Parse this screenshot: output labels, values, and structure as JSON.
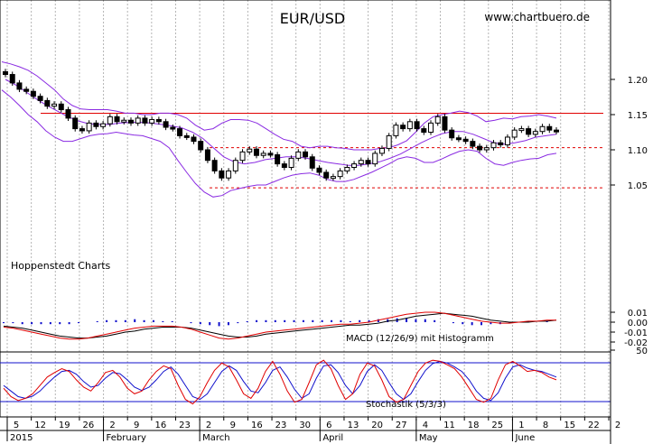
{
  "chart_data": {
    "type": "candlestick",
    "title": "EUR/USD",
    "source": "www.chartbuero.de",
    "watermark": "Hoppenstedt Charts",
    "price_axis": {
      "ylim": [
        1.03,
        1.22
      ],
      "ticks": [
        "1.20",
        "1.15",
        "1.10",
        "1.05"
      ],
      "tick_values": [
        1.2,
        1.15,
        1.1,
        1.05
      ]
    },
    "macd_axis": {
      "ticks": [
        "0.01",
        "0.00",
        "-0.01",
        "-0.02"
      ],
      "tick_values": [
        0.01,
        0.0,
        -0.01,
        -0.02
      ]
    },
    "stoch_axis": {
      "ticks": [
        "50"
      ],
      "tick_values": [
        50
      ]
    },
    "x_day_ticks": [
      "5",
      "12",
      "19",
      "26",
      "2",
      "9",
      "16",
      "23",
      "2",
      "9",
      "16",
      "23",
      "30",
      "6",
      "13",
      "20",
      "27",
      "4",
      "11",
      "18",
      "25",
      "1",
      "8",
      "15",
      "22",
      "2"
    ],
    "x_month_labels": [
      {
        "label": "2015",
        "tick_index": 0
      },
      {
        "label": "February",
        "tick_index": 4
      },
      {
        "label": "March",
        "tick_index": 8
      },
      {
        "label": "April",
        "tick_index": 13
      },
      {
        "label": "May",
        "tick_index": 17
      },
      {
        "label": "June",
        "tick_index": 21
      }
    ],
    "horizontal_lines": [
      {
        "value": 1.152,
        "style": "solid",
        "color": "#e00000"
      },
      {
        "value": 1.103,
        "style": "dashed",
        "color": "#e00000"
      },
      {
        "value": 1.046,
        "style": "dashed",
        "color": "#e00000"
      }
    ],
    "close_series": [
      1.207,
      1.195,
      1.186,
      1.183,
      1.176,
      1.17,
      1.162,
      1.165,
      1.157,
      1.145,
      1.13,
      1.127,
      1.138,
      1.133,
      1.137,
      1.147,
      1.14,
      1.142,
      1.138,
      1.145,
      1.138,
      1.143,
      1.14,
      1.132,
      1.13,
      1.12,
      1.118,
      1.112,
      1.1,
      1.085,
      1.07,
      1.06,
      1.07,
      1.085,
      1.097,
      1.101,
      1.092,
      1.095,
      1.093,
      1.08,
      1.075,
      1.088,
      1.097,
      1.09,
      1.074,
      1.068,
      1.06,
      1.062,
      1.07,
      1.075,
      1.08,
      1.085,
      1.08,
      1.095,
      1.102,
      1.12,
      1.135,
      1.13,
      1.14,
      1.13,
      1.125,
      1.138,
      1.147,
      1.128,
      1.117,
      1.115,
      1.112,
      1.105,
      1.1,
      1.103,
      1.11,
      1.107,
      1.118,
      1.128,
      1.13,
      1.122,
      1.126,
      1.133,
      1.128,
      1.126
    ],
    "bollinger_upper": [
      1.225,
      1.222,
      1.218,
      1.213,
      1.205,
      1.195,
      1.185,
      1.172,
      1.163,
      1.158,
      1.157,
      1.157,
      1.157,
      1.155,
      1.152,
      1.152,
      1.15,
      1.15,
      1.152,
      1.152,
      1.15,
      1.145,
      1.135,
      1.128,
      1.13,
      1.138,
      1.143,
      1.143,
      1.142,
      1.138,
      1.13,
      1.122,
      1.115,
      1.112,
      1.105,
      1.103,
      1.105,
      1.105,
      1.103,
      1.102,
      1.1,
      1.1,
      1.1,
      1.102,
      1.103,
      1.107,
      1.113,
      1.125,
      1.138,
      1.147,
      1.15,
      1.152,
      1.155,
      1.153,
      1.148,
      1.14,
      1.142,
      1.145,
      1.144,
      1.147,
      1.148,
      1.15,
      1.148,
      1.145
    ],
    "bollinger_lower": [
      1.185,
      1.175,
      1.163,
      1.15,
      1.14,
      1.127,
      1.118,
      1.112,
      1.112,
      1.116,
      1.12,
      1.122,
      1.123,
      1.125,
      1.123,
      1.121,
      1.12,
      1.116,
      1.112,
      1.103,
      1.085,
      1.068,
      1.052,
      1.04,
      1.033,
      1.035,
      1.042,
      1.045,
      1.048,
      1.05,
      1.05,
      1.055,
      1.06,
      1.064,
      1.066,
      1.067,
      1.064,
      1.058,
      1.055,
      1.055,
      1.058,
      1.063,
      1.068,
      1.074,
      1.08,
      1.087,
      1.09,
      1.088,
      1.082,
      1.082,
      1.087,
      1.093,
      1.098,
      1.1,
      1.098,
      1.088,
      1.08,
      1.078,
      1.082,
      1.085,
      1.087,
      1.088,
      1.093,
      1.095
    ],
    "bollinger_mid": [
      1.2,
      1.192,
      1.182,
      1.172,
      1.163,
      1.155,
      1.147,
      1.141,
      1.137,
      1.136,
      1.136,
      1.138,
      1.139,
      1.139,
      1.138,
      1.136,
      1.134,
      1.131,
      1.125,
      1.116,
      1.103,
      1.09,
      1.083,
      1.08,
      1.082,
      1.086,
      1.088,
      1.09,
      1.09,
      1.088,
      1.085,
      1.082,
      1.08,
      1.078,
      1.078,
      1.08,
      1.083,
      1.088,
      1.094,
      1.102,
      1.11,
      1.117,
      1.123,
      1.126,
      1.126,
      1.122,
      1.116,
      1.11,
      1.108,
      1.11,
      1.113,
      1.118,
      1.12,
      1.122
    ],
    "macd_line": [
      -0.005,
      -0.006,
      -0.008,
      -0.01,
      -0.012,
      -0.014,
      -0.016,
      -0.017,
      -0.017,
      -0.016,
      -0.014,
      -0.012,
      -0.01,
      -0.008,
      -0.006,
      -0.005,
      -0.004,
      -0.004,
      -0.004,
      -0.005,
      -0.007,
      -0.01,
      -0.013,
      -0.016,
      -0.017,
      -0.016,
      -0.014,
      -0.012,
      -0.01,
      -0.009,
      -0.008,
      -0.007,
      -0.006,
      -0.005,
      -0.004,
      -0.003,
      -0.002,
      -0.002,
      -0.001,
      0.0,
      0.002,
      0.004,
      0.006,
      0.008,
      0.009,
      0.01,
      0.01,
      0.009,
      0.007,
      0.005,
      0.003,
      0.001,
      0.0,
      -0.001,
      -0.001,
      0.0,
      0.001,
      0.001,
      0.002,
      0.002
    ],
    "macd_signal": [
      -0.004,
      -0.005,
      -0.006,
      -0.008,
      -0.01,
      -0.012,
      -0.014,
      -0.015,
      -0.016,
      -0.016,
      -0.015,
      -0.014,
      -0.012,
      -0.01,
      -0.009,
      -0.007,
      -0.006,
      -0.005,
      -0.005,
      -0.005,
      -0.006,
      -0.008,
      -0.01,
      -0.012,
      -0.014,
      -0.015,
      -0.015,
      -0.014,
      -0.012,
      -0.011,
      -0.01,
      -0.009,
      -0.008,
      -0.007,
      -0.006,
      -0.005,
      -0.004,
      -0.003,
      -0.003,
      -0.002,
      -0.001,
      0.001,
      0.002,
      0.004,
      0.006,
      0.007,
      0.008,
      0.009,
      0.008,
      0.007,
      0.006,
      0.004,
      0.002,
      0.001,
      0.0,
      0.0,
      0.0,
      0.001,
      0.001,
      0.002
    ],
    "macd_hist": [
      -0.001,
      -0.001,
      -0.002,
      -0.002,
      -0.002,
      -0.002,
      -0.002,
      -0.002,
      -0.001,
      0.0,
      0.001,
      0.002,
      0.002,
      0.002,
      0.003,
      0.002,
      0.002,
      0.001,
      0.001,
      0.0,
      -0.001,
      -0.002,
      -0.003,
      -0.004,
      -0.003,
      -0.001,
      0.001,
      0.002,
      0.002,
      0.002,
      0.002,
      0.002,
      0.002,
      0.002,
      0.002,
      0.002,
      0.002,
      0.001,
      0.002,
      0.002,
      0.003,
      0.003,
      0.004,
      0.004,
      0.003,
      0.003,
      0.002,
      0.0,
      -0.001,
      -0.002,
      -0.003,
      -0.003,
      -0.002,
      -0.002,
      -0.001,
      0.0,
      0.001,
      0.0,
      0.001,
      0.0
    ],
    "stoch_k": [
      40,
      25,
      18,
      22,
      30,
      45,
      60,
      68,
      75,
      70,
      55,
      42,
      35,
      50,
      68,
      72,
      60,
      40,
      30,
      35,
      55,
      70,
      80,
      75,
      45,
      20,
      12,
      25,
      50,
      72,
      85,
      78,
      55,
      30,
      22,
      40,
      70,
      88,
      65,
      35,
      15,
      20,
      50,
      82,
      90,
      75,
      45,
      20,
      30,
      65,
      85,
      80,
      55,
      25,
      15,
      20,
      45,
      70,
      85,
      90,
      88,
      82,
      75,
      60,
      40,
      20,
      15,
      22,
      55,
      82,
      88,
      80,
      70,
      72,
      68,
      60,
      55
    ],
    "stoch_d": [
      45,
      35,
      25,
      22,
      26,
      35,
      48,
      60,
      70,
      72,
      65,
      52,
      42,
      45,
      58,
      68,
      66,
      55,
      42,
      36,
      42,
      55,
      70,
      78,
      65,
      45,
      25,
      20,
      30,
      50,
      70,
      80,
      72,
      52,
      35,
      32,
      50,
      72,
      78,
      60,
      38,
      22,
      30,
      58,
      80,
      82,
      68,
      45,
      30,
      45,
      70,
      82,
      72,
      50,
      30,
      20,
      30,
      52,
      72,
      84,
      88,
      85,
      78,
      70,
      55,
      35,
      22,
      18,
      32,
      58,
      78,
      82,
      76,
      72,
      70,
      65,
      60
    ],
    "macd_label": "MACD (12/26/9) mit Histogramm",
    "stoch_label": "Stochastik (5/3/3)"
  }
}
